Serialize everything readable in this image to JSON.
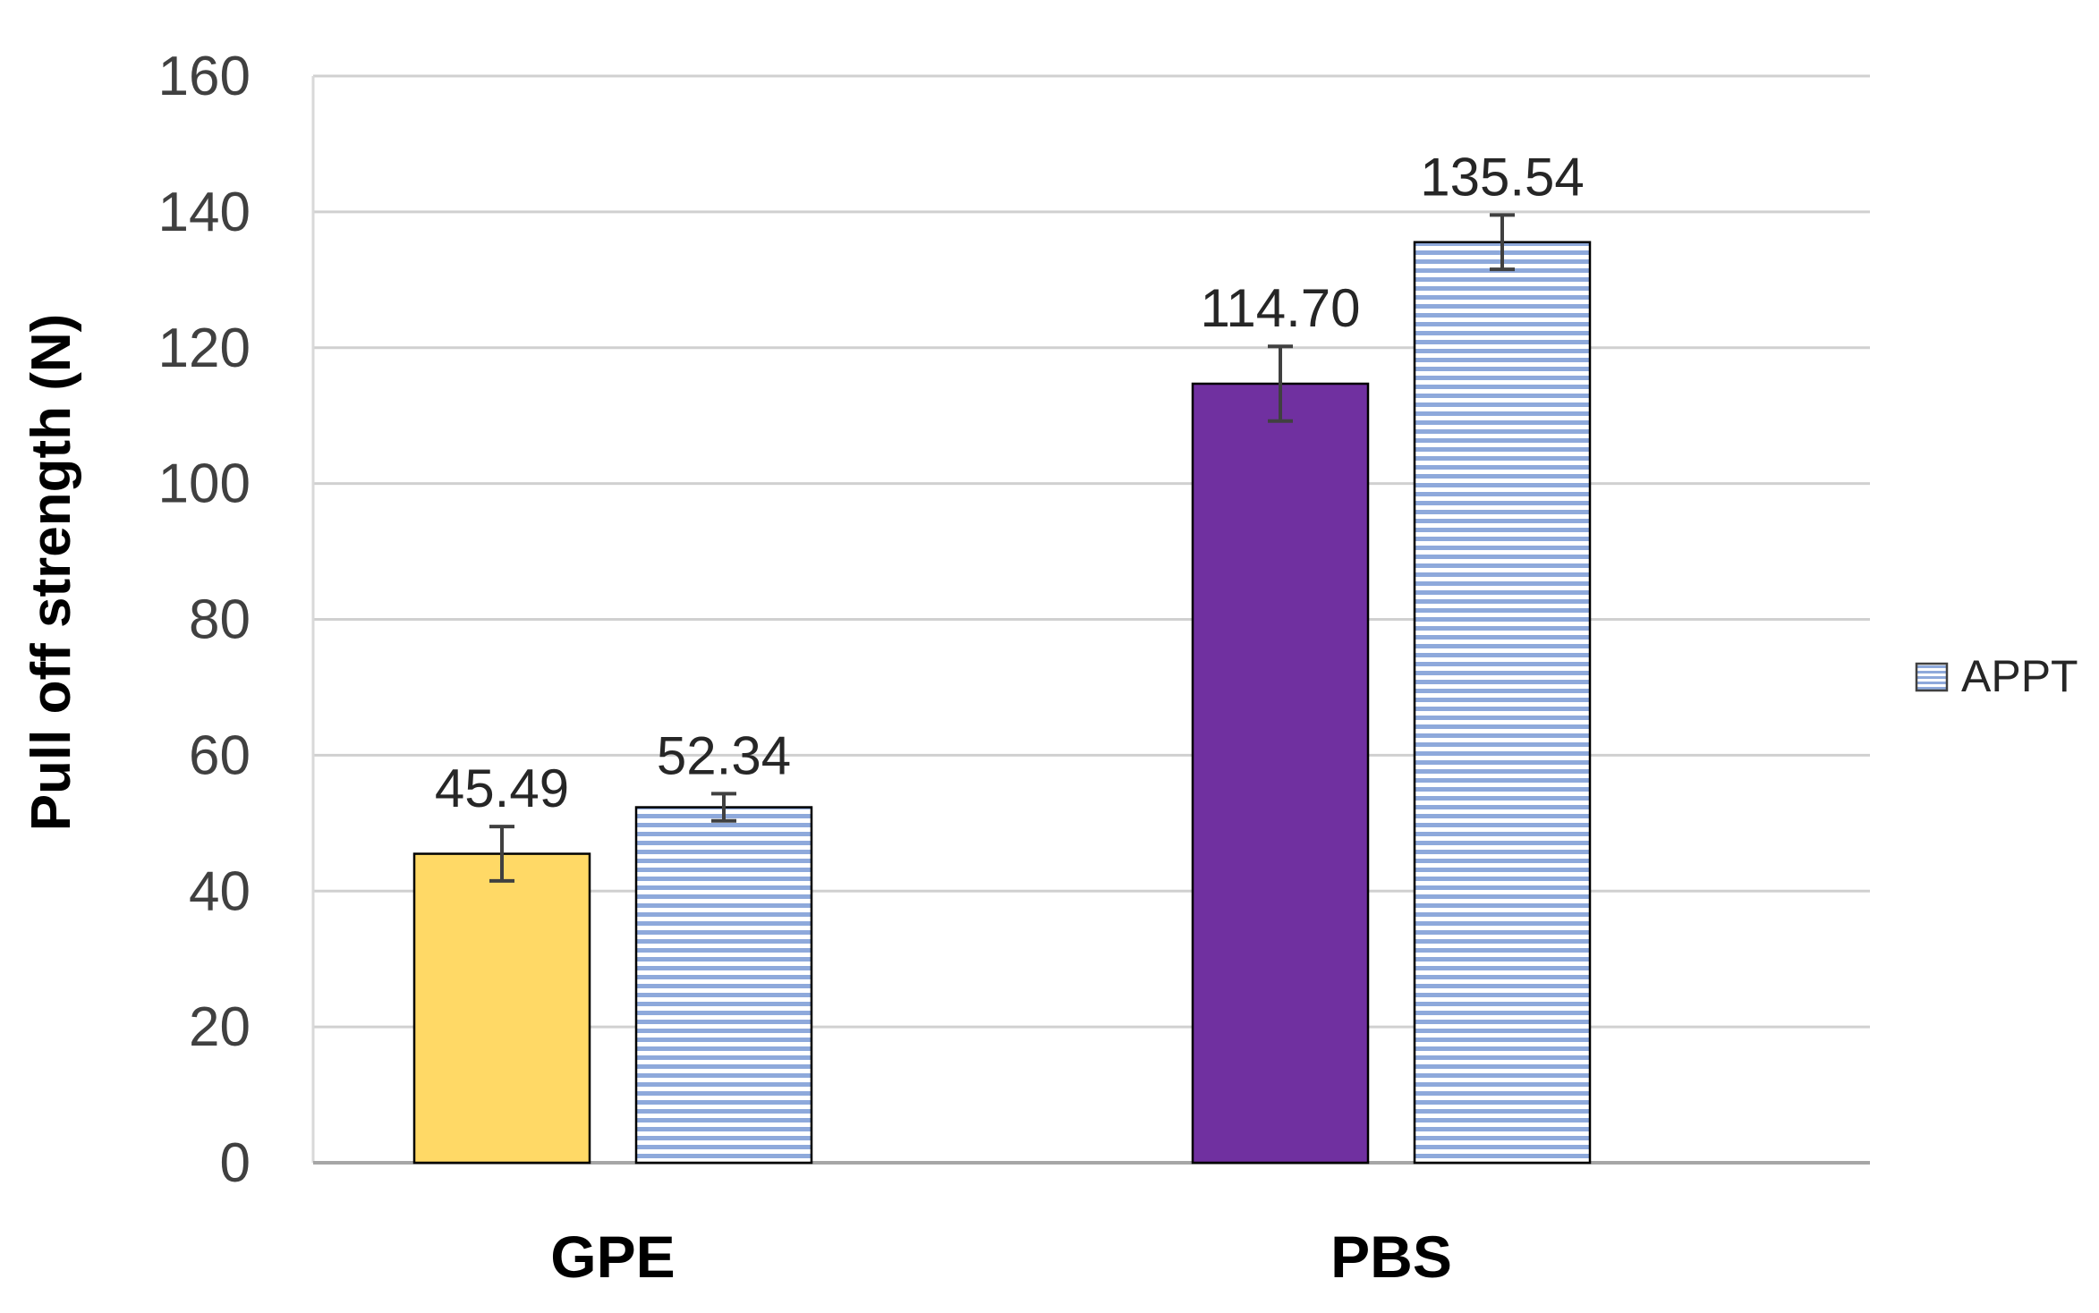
{
  "chart_data": {
    "type": "bar",
    "categories": [
      "GPE",
      "PBS"
    ],
    "ylabel": "Pull off strength (N)",
    "xlabel": "",
    "ylim": [
      0,
      160
    ],
    "yticks": [
      0,
      20,
      40,
      60,
      80,
      100,
      120,
      140,
      160
    ],
    "grid": true,
    "legend_position": "right",
    "bars": [
      {
        "category": "GPE",
        "slot": 0,
        "value": 45.49,
        "label": "45.49",
        "error": 4,
        "fill": "#FFD966",
        "pattern": "solid"
      },
      {
        "category": "GPE",
        "slot": 1,
        "value": 52.34,
        "label": "52.34",
        "error": 2,
        "fill": "#8EA9DB",
        "pattern": "hlines"
      },
      {
        "category": "PBS",
        "slot": 0,
        "value": 114.7,
        "label": "114.70",
        "error": 5.5,
        "fill": "#7030A0",
        "pattern": "solid"
      },
      {
        "category": "PBS",
        "slot": 1,
        "value": 135.54,
        "label": "135.54",
        "error": 4,
        "fill": "#8EA9DB",
        "pattern": "hlines"
      }
    ],
    "legend": [
      {
        "label": "APPT",
        "pattern": "hlines",
        "fill": "#8EA9DB"
      }
    ]
  }
}
